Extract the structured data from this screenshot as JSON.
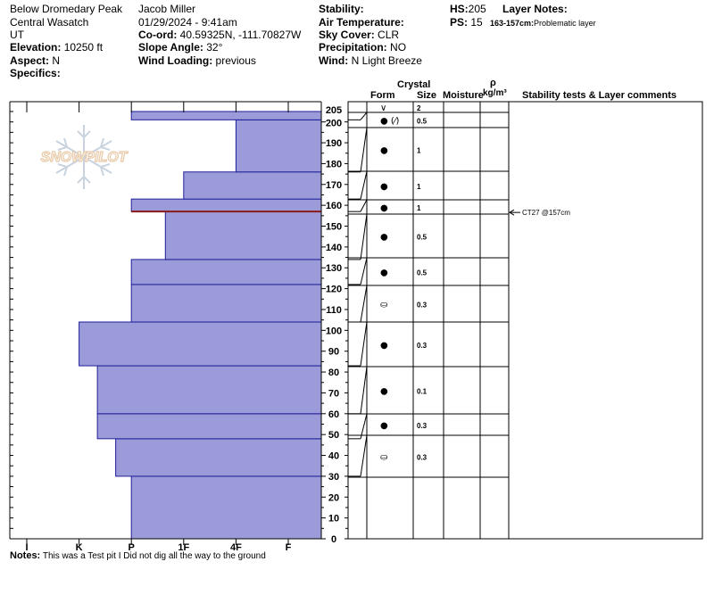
{
  "header": {
    "location": "Below Dromedary Peak",
    "range": "Central Wasatch",
    "state": "UT",
    "elevation_label": "Elevation:",
    "elevation_value": "10250 ft",
    "aspect_label": "Aspect:",
    "aspect_value": "N",
    "specifics_label": "Specifics:",
    "observer": "Jacob Miller",
    "datetime": "01/29/2024 - 9:41am",
    "coord_label": "Co-ord:",
    "coord_value": "40.59325N, -111.70827W",
    "slope_label": "Slope Angle:",
    "slope_value": "32°",
    "wind_loading_label": "Wind Loading:",
    "wind_loading_value": "previous",
    "stability_label": "Stability:",
    "air_temp_label": "Air Temperature:",
    "sky_label": "Sky Cover:",
    "sky_value": "CLR",
    "precip_label": "Precipitation:",
    "precip_value": "NO",
    "wind_label": "Wind:",
    "wind_value": "N Light Breeze",
    "hs_label": "HS:",
    "hs_value": "205",
    "ps_label": "PS:",
    "ps_value": "15",
    "layer_notes_label": "Layer Notes:",
    "layer_note_depth": "163-157cm:",
    "layer_note_text": "Problematic layer"
  },
  "columns": {
    "crystal": "Crystal",
    "form": "Form",
    "size": "Size",
    "moisture": "Moisture",
    "rho": "ρ",
    "density_unit": "kg/m³",
    "stability_tests": "Stability tests & Layer comments"
  },
  "notes": {
    "label": "Notes:",
    "text": "This was a Test pit I Did not dig all the way to the ground"
  },
  "logo_text": "SNOWPILOT",
  "colors": {
    "bar_fill": "#9b9bd9",
    "bar_stroke": "#1f1f99",
    "problem_layer": "#8b1a1a",
    "logo": "#e8c9a8"
  },
  "chart_data": {
    "type": "snow-profile",
    "hardness_axis": [
      "I",
      "K",
      "P",
      "1F",
      "4F",
      "F"
    ],
    "height_axis_ticks": [
      0,
      10,
      20,
      30,
      40,
      50,
      60,
      70,
      80,
      90,
      100,
      110,
      120,
      130,
      140,
      150,
      160,
      170,
      180,
      190,
      200,
      205
    ],
    "ylim": [
      0,
      205
    ],
    "hardness_layers": [
      {
        "bottom": 0,
        "top": 30,
        "hardness": "P"
      },
      {
        "bottom": 30,
        "top": 48,
        "hardness": "K+"
      },
      {
        "bottom": 48,
        "top": 60,
        "hardness": "K-"
      },
      {
        "bottom": 60,
        "top": 83,
        "hardness": "K-"
      },
      {
        "bottom": 83,
        "top": 104,
        "hardness": "K"
      },
      {
        "bottom": 104,
        "top": 122,
        "hardness": "P"
      },
      {
        "bottom": 122,
        "top": 134,
        "hardness": "P"
      },
      {
        "bottom": 134,
        "top": 157,
        "hardness": "P+"
      },
      {
        "bottom": 157,
        "top": 163,
        "hardness": "P"
      },
      {
        "bottom": 163,
        "top": 176,
        "hardness": "1F"
      },
      {
        "bottom": 176,
        "top": 201,
        "hardness": "4F"
      },
      {
        "bottom": 201,
        "top": 205,
        "hardness": "P"
      }
    ],
    "hardness_index": {
      "I": 0,
      "K-": 1.35,
      "K": 1,
      "K+": 1.7,
      "P-": 1.65,
      "P": 2,
      "P+": 2.65,
      "1F": 3,
      "4F": 4,
      "F": 5
    },
    "problem_layer_height": 157,
    "layer_rows": [
      {
        "bottom": 201,
        "top": 205,
        "form": "∨",
        "size": "2",
        "label_height": 202
      },
      {
        "bottom": 176,
        "top": 201,
        "form": "● (⁄)",
        "size": "0.5",
        "label_height": 188
      },
      {
        "bottom": 163,
        "top": 176,
        "form": "●",
        "size": "1",
        "label_height": 169
      },
      {
        "bottom": 157,
        "top": 163,
        "form": "●",
        "size": "1",
        "label_height": 160
      },
      {
        "bottom": 134,
        "top": 157,
        "form": "●",
        "size": "1",
        "label_height": 145
      },
      {
        "bottom": 122,
        "top": 134,
        "form": "●",
        "size": "0.5",
        "label_height": 128
      },
      {
        "bottom": 104,
        "top": 122,
        "form": "●",
        "size": "0.5",
        "label_height": 113
      },
      {
        "bottom": 83,
        "top": 104,
        "form": "⛀",
        "size": "0.3",
        "label_height": 93
      },
      {
        "bottom": 60,
        "top": 83,
        "form": "●",
        "size": "0.3",
        "label_height": 71
      },
      {
        "bottom": 48,
        "top": 60,
        "form": "●",
        "size": "0.1",
        "label_height": 54
      },
      {
        "bottom": 30,
        "top": 48,
        "form": "●",
        "size": "0.3",
        "label_height": 39
      },
      {
        "bottom": 0,
        "top": 30,
        "form": "⛀",
        "size": "0.3",
        "label_height": 15
      }
    ],
    "stability_tests": [
      {
        "height": 157,
        "text": "CT27 @157cm"
      }
    ]
  }
}
